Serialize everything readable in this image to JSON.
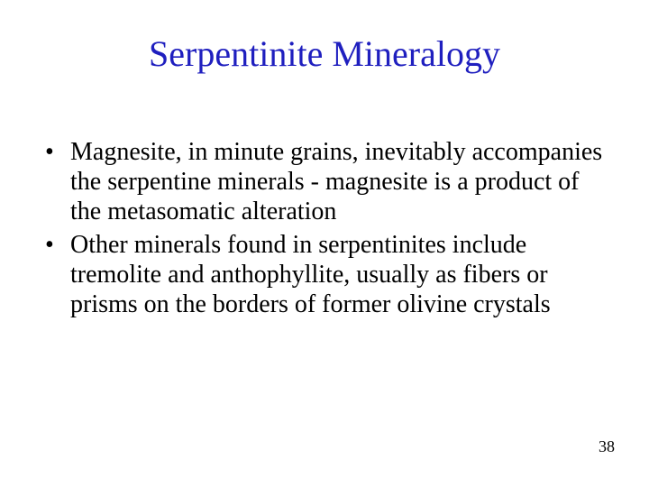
{
  "colors": {
    "title_color": "#1f1fbf",
    "body_color": "#000000",
    "background": "#ffffff"
  },
  "typography": {
    "title_fontsize": 40,
    "body_fontsize": 28,
    "page_number_fontsize": 18,
    "font_family": "Times New Roman"
  },
  "title": "Serpentinite Mineralogy",
  "bullets": [
    " Magnesite, in minute grains, inevitably accompanies the serpentine minerals - magnesite is a product of the metasomatic alteration",
    "Other minerals found in serpentinites include tremolite and anthophyllite, usually as fibers or prisms on the borders of former olivine crystals"
  ],
  "page_number": "38"
}
